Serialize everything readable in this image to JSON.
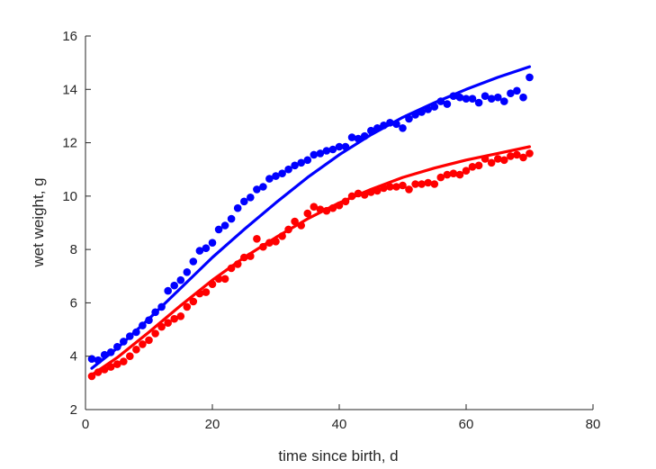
{
  "chart_data": {
    "type": "scatter",
    "title": "",
    "xlabel": "time since birth, d",
    "ylabel": "wet weight, g",
    "xlim": [
      0,
      80
    ],
    "ylim": [
      2,
      16
    ],
    "xticks": [
      "0",
      "20",
      "40",
      "60",
      "80"
    ],
    "yticks": [
      "2",
      "4",
      "6",
      "8",
      "10",
      "12",
      "14",
      "16"
    ],
    "grid": false,
    "legend": "none",
    "series": [
      {
        "kind": "points",
        "color": "#0000ff",
        "x": [
          1,
          2,
          3,
          4,
          5,
          6,
          7,
          8,
          9,
          10,
          11,
          12,
          13,
          14,
          15,
          16,
          17,
          18,
          19,
          20,
          21,
          22,
          23,
          24,
          25,
          26,
          27,
          28,
          29,
          30,
          31,
          32,
          33,
          34,
          35,
          36,
          37,
          38,
          39,
          40,
          41,
          42,
          43,
          44,
          45,
          46,
          47,
          48,
          49,
          50,
          51,
          52,
          53,
          54,
          55,
          56,
          57,
          58,
          59,
          60,
          61,
          62,
          63,
          64,
          65,
          66,
          67,
          68,
          69,
          70
        ],
        "y": [
          3.9,
          3.85,
          4.05,
          4.15,
          4.35,
          4.55,
          4.75,
          4.9,
          5.15,
          5.35,
          5.65,
          5.85,
          6.45,
          6.65,
          6.85,
          7.15,
          7.55,
          7.95,
          8.05,
          8.25,
          8.75,
          8.9,
          9.15,
          9.55,
          9.8,
          9.95,
          10.25,
          10.35,
          10.65,
          10.75,
          10.85,
          11.0,
          11.15,
          11.25,
          11.35,
          11.55,
          11.6,
          11.7,
          11.75,
          11.85,
          11.85,
          12.2,
          12.15,
          12.25,
          12.45,
          12.55,
          12.65,
          12.75,
          12.7,
          12.55,
          12.9,
          13.05,
          13.15,
          13.25,
          13.35,
          13.55,
          13.45,
          13.75,
          13.7,
          13.65,
          13.65,
          13.5,
          13.75,
          13.65,
          13.7,
          13.55,
          13.85,
          13.95,
          13.7,
          14.45
        ]
      },
      {
        "kind": "points",
        "color": "#ff0000",
        "x": [
          1,
          2,
          3,
          4,
          5,
          6,
          7,
          8,
          9,
          10,
          11,
          12,
          13,
          14,
          15,
          16,
          17,
          18,
          19,
          20,
          21,
          22,
          23,
          24,
          25,
          26,
          27,
          28,
          29,
          30,
          31,
          32,
          33,
          34,
          35,
          36,
          37,
          38,
          39,
          40,
          41,
          42,
          43,
          44,
          45,
          46,
          47,
          48,
          49,
          50,
          51,
          52,
          53,
          54,
          55,
          56,
          57,
          58,
          59,
          60,
          61,
          62,
          63,
          64,
          65,
          66,
          67,
          68,
          69,
          70
        ],
        "y": [
          3.25,
          3.4,
          3.5,
          3.6,
          3.7,
          3.8,
          4.0,
          4.25,
          4.45,
          4.6,
          4.85,
          5.1,
          5.25,
          5.4,
          5.5,
          5.85,
          6.05,
          6.35,
          6.4,
          6.7,
          6.9,
          6.9,
          7.3,
          7.45,
          7.7,
          7.75,
          8.4,
          8.1,
          8.25,
          8.3,
          8.5,
          8.75,
          9.05,
          8.9,
          9.35,
          9.6,
          9.5,
          9.45,
          9.55,
          9.65,
          9.8,
          10.0,
          10.1,
          10.05,
          10.15,
          10.2,
          10.3,
          10.35,
          10.35,
          10.4,
          10.25,
          10.45,
          10.45,
          10.5,
          10.45,
          10.7,
          10.8,
          10.85,
          10.8,
          10.95,
          11.1,
          11.15,
          11.4,
          11.25,
          11.4,
          11.35,
          11.5,
          11.55,
          11.45,
          11.6
        ]
      },
      {
        "kind": "line",
        "color": "#0000ff",
        "x": [
          1,
          5,
          10,
          15,
          20,
          25,
          30,
          35,
          40,
          45,
          50,
          55,
          60,
          65,
          70
        ],
        "y": [
          3.55,
          4.3,
          5.4,
          6.55,
          7.7,
          8.75,
          9.75,
          10.7,
          11.55,
          12.3,
          12.95,
          13.5,
          14.0,
          14.45,
          14.85
        ]
      },
      {
        "kind": "line",
        "color": "#ff0000",
        "x": [
          1,
          5,
          10,
          15,
          20,
          25,
          30,
          35,
          40,
          45,
          50,
          55,
          60,
          65,
          70
        ],
        "y": [
          3.3,
          3.95,
          4.9,
          5.9,
          6.85,
          7.7,
          8.45,
          9.15,
          9.75,
          10.25,
          10.7,
          11.05,
          11.35,
          11.6,
          11.85
        ]
      }
    ]
  }
}
